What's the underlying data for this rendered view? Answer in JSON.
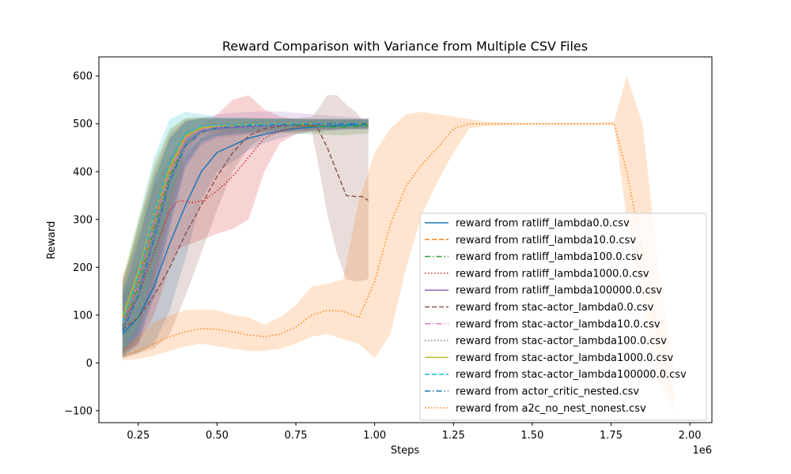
{
  "chart_data": {
    "type": "line",
    "title": "Reward Comparison with Variance from Multiple CSV Files",
    "xlabel": "Steps",
    "ylabel": "Reward",
    "x_offset_label": "1e6",
    "xlim": [
      0.125,
      2.07
    ],
    "ylim": [
      -125,
      640
    ],
    "x_ticks": [
      0.25,
      0.5,
      0.75,
      1.0,
      1.25,
      1.5,
      1.75,
      2.0
    ],
    "x_tick_labels": [
      "0.25",
      "0.50",
      "0.75",
      "1.00",
      "1.25",
      "1.50",
      "1.75",
      "2.00"
    ],
    "y_ticks": [
      -100,
      0,
      100,
      200,
      300,
      400,
      500,
      600
    ],
    "y_tick_labels": [
      "−100",
      "0",
      "100",
      "200",
      "300",
      "400",
      "500",
      "600"
    ],
    "grid": false,
    "legend_position": "lower-right",
    "series": [
      {
        "name": "reward from ratliff_lambda0.0.csv",
        "color": "#1f77b4",
        "dash": "solid",
        "x": [
          0.2,
          0.25,
          0.3,
          0.35,
          0.4,
          0.45,
          0.5,
          0.55,
          0.6,
          0.65,
          0.7,
          0.75,
          0.8,
          0.85,
          0.9,
          0.95,
          0.98
        ],
        "y": [
          60,
          95,
          160,
          250,
          330,
          400,
          440,
          455,
          470,
          478,
          485,
          490,
          493,
          495,
          497,
          498,
          500
        ],
        "lo": [
          10,
          20,
          40,
          110,
          220,
          340,
          400,
          420,
          445,
          460,
          470,
          478,
          482,
          485,
          488,
          490,
          492
        ],
        "hi": [
          130,
          190,
          290,
          380,
          440,
          470,
          480,
          490,
          495,
          498,
          500,
          503,
          505,
          506,
          507,
          508,
          508
        ]
      },
      {
        "name": "reward from ratliff_lambda10.0.csv",
        "color": "#ff7f0e",
        "dash": "dashed",
        "x": [
          0.2,
          0.25,
          0.3,
          0.35,
          0.4,
          0.45,
          0.5,
          0.6,
          0.7,
          0.8,
          0.9,
          0.98
        ],
        "y": [
          80,
          170,
          290,
          400,
          470,
          490,
          495,
          497,
          498,
          499,
          500,
          500
        ],
        "lo": [
          20,
          60,
          180,
          320,
          440,
          475,
          482,
          485,
          487,
          488,
          489,
          490
        ],
        "hi": [
          170,
          290,
          400,
          480,
          510,
          512,
          512,
          512,
          511,
          510,
          510,
          510
        ]
      },
      {
        "name": "reward from ratliff_lambda100.0.csv",
        "color": "#2ca02c",
        "dash": "dashdot",
        "x": [
          0.2,
          0.25,
          0.3,
          0.35,
          0.4,
          0.45,
          0.5,
          0.6,
          0.7,
          0.8,
          0.9,
          0.98
        ],
        "y": [
          75,
          160,
          280,
          390,
          460,
          485,
          490,
          495,
          498,
          495,
          493,
          497
        ],
        "lo": [
          15,
          50,
          160,
          300,
          420,
          465,
          475,
          480,
          482,
          478,
          476,
          480
        ],
        "hi": [
          160,
          280,
          390,
          470,
          505,
          510,
          510,
          510,
          512,
          510,
          508,
          510
        ]
      },
      {
        "name": "reward from ratliff_lambda1000.0.csv",
        "color": "#d62728",
        "dash": "dotted",
        "x": [
          0.2,
          0.25,
          0.3,
          0.35,
          0.38,
          0.42,
          0.46,
          0.5,
          0.55,
          0.6,
          0.65,
          0.7,
          0.75,
          0.8,
          0.85,
          0.9,
          0.95,
          0.98
        ],
        "y": [
          85,
          140,
          230,
          320,
          340,
          335,
          340,
          360,
          390,
          430,
          470,
          485,
          493,
          497,
          499,
          500,
          500,
          500
        ],
        "lo": [
          20,
          40,
          100,
          200,
          240,
          250,
          260,
          270,
          280,
          300,
          400,
          460,
          478,
          485,
          488,
          490,
          490,
          490
        ],
        "hi": [
          180,
          260,
          370,
          430,
          460,
          480,
          500,
          520,
          550,
          560,
          530,
          515,
          510,
          510,
          510,
          510,
          510,
          510
        ]
      },
      {
        "name": "reward from ratliff_lambda100000.0.csv",
        "color": "#9467bd",
        "dash": "solid",
        "x": [
          0.2,
          0.25,
          0.3,
          0.35,
          0.4,
          0.45,
          0.5,
          0.6,
          0.7,
          0.8,
          0.9,
          0.98
        ],
        "y": [
          70,
          140,
          260,
          380,
          460,
          485,
          490,
          494,
          497,
          499,
          500,
          500
        ],
        "lo": [
          15,
          40,
          140,
          290,
          410,
          455,
          470,
          478,
          482,
          485,
          487,
          488
        ],
        "hi": [
          150,
          260,
          380,
          470,
          505,
          512,
          520,
          525,
          526,
          520,
          515,
          512
        ]
      },
      {
        "name": "reward from stac-actor_lambda0.0.csv",
        "color": "#8c564b",
        "dash": "dashed",
        "x": [
          0.2,
          0.25,
          0.3,
          0.35,
          0.4,
          0.45,
          0.5,
          0.55,
          0.6,
          0.65,
          0.7,
          0.75,
          0.8,
          0.82,
          0.85,
          0.88,
          0.91,
          0.94,
          0.96,
          0.98
        ],
        "y": [
          70,
          95,
          140,
          200,
          270,
          330,
          390,
          440,
          475,
          490,
          495,
          498,
          500,
          490,
          450,
          400,
          350,
          348,
          348,
          340
        ],
        "lo": [
          10,
          20,
          30,
          60,
          140,
          230,
          320,
          400,
          450,
          475,
          480,
          484,
          485,
          420,
          310,
          230,
          175,
          170,
          172,
          175
        ],
        "hi": [
          150,
          210,
          280,
          360,
          430,
          470,
          490,
          500,
          505,
          508,
          510,
          512,
          515,
          530,
          560,
          560,
          540,
          525,
          510,
          500
        ]
      },
      {
        "name": "reward from stac-actor_lambda10.0.csv",
        "color": "#e377c2",
        "dash": "dashdot",
        "x": [
          0.2,
          0.25,
          0.3,
          0.35,
          0.4,
          0.45,
          0.5,
          0.6,
          0.7,
          0.8,
          0.9,
          0.98
        ],
        "y": [
          80,
          165,
          290,
          400,
          470,
          490,
          494,
          497,
          499,
          500,
          500,
          500
        ],
        "lo": [
          20,
          60,
          180,
          320,
          440,
          475,
          482,
          486,
          488,
          490,
          490,
          490
        ],
        "hi": [
          160,
          280,
          400,
          480,
          508,
          512,
          512,
          512,
          511,
          510,
          510,
          510
        ]
      },
      {
        "name": "reward from stac-actor_lambda100.0.csv",
        "color": "#7f7f7f",
        "dash": "dotted",
        "x": [
          0.2,
          0.25,
          0.3,
          0.35,
          0.4,
          0.45,
          0.5,
          0.6,
          0.7,
          0.8,
          0.9,
          0.98
        ],
        "y": [
          80,
          170,
          300,
          410,
          478,
          494,
          497,
          498,
          499,
          500,
          500,
          500
        ],
        "lo": [
          20,
          60,
          190,
          330,
          448,
          482,
          486,
          488,
          489,
          490,
          490,
          490
        ],
        "hi": [
          160,
          290,
          410,
          488,
          512,
          514,
          512,
          511,
          510,
          510,
          510,
          510
        ]
      },
      {
        "name": "reward from stac-actor_lambda1000.0.csv",
        "color": "#bcbd22",
        "dash": "solid",
        "x": [
          0.2,
          0.25,
          0.3,
          0.35,
          0.4,
          0.45,
          0.5,
          0.6,
          0.7,
          0.8,
          0.9,
          0.98
        ],
        "y": [
          95,
          190,
          310,
          410,
          475,
          492,
          496,
          498,
          499,
          500,
          500,
          500
        ],
        "lo": [
          30,
          80,
          200,
          330,
          445,
          478,
          485,
          488,
          489,
          490,
          490,
          490
        ],
        "hi": [
          180,
          300,
          420,
          490,
          512,
          514,
          512,
          511,
          510,
          510,
          510,
          510
        ]
      },
      {
        "name": "reward from stac-actor_lambda100000.0.csv",
        "color": "#17becf",
        "dash": "dashed",
        "x": [
          0.2,
          0.25,
          0.3,
          0.35,
          0.4,
          0.45,
          0.5,
          0.6,
          0.7,
          0.8,
          0.9,
          0.98
        ],
        "y": [
          85,
          180,
          310,
          420,
          480,
          495,
          497,
          498,
          499,
          500,
          500,
          500
        ],
        "lo": [
          20,
          70,
          200,
          340,
          450,
          482,
          486,
          488,
          489,
          490,
          490,
          490
        ],
        "hi": [
          170,
          300,
          430,
          510,
          525,
          520,
          514,
          512,
          511,
          510,
          510,
          510
        ]
      },
      {
        "name": "reward from actor_critic_nested.csv",
        "color": "#1f77b4",
        "dash": "dashdot",
        "x": [
          0.2,
          0.25,
          0.3,
          0.35,
          0.4,
          0.45,
          0.5,
          0.6,
          0.7,
          0.8,
          0.9,
          0.98
        ],
        "y": [
          65,
          140,
          260,
          380,
          455,
          482,
          492,
          496,
          498,
          499,
          500,
          500
        ],
        "lo": [
          10,
          40,
          140,
          280,
          410,
          460,
          474,
          482,
          486,
          488,
          490,
          490
        ],
        "hi": [
          140,
          250,
          380,
          470,
          505,
          512,
          512,
          512,
          511,
          510,
          510,
          510
        ]
      },
      {
        "name": "reward from a2c_no_nest_nonest.csv",
        "color": "#ff7f0e",
        "dash": "dotted",
        "alpha": 0.2,
        "x": [
          0.2,
          0.25,
          0.3,
          0.35,
          0.4,
          0.45,
          0.5,
          0.55,
          0.6,
          0.65,
          0.7,
          0.75,
          0.8,
          0.85,
          0.9,
          0.95,
          1.0,
          1.05,
          1.1,
          1.15,
          1.2,
          1.25,
          1.3,
          1.35,
          1.4,
          1.5,
          1.6,
          1.7,
          1.76,
          1.8,
          1.85,
          1.9,
          1.95
        ],
        "y": [
          15,
          25,
          40,
          55,
          65,
          72,
          70,
          65,
          58,
          55,
          60,
          75,
          100,
          110,
          108,
          95,
          170,
          290,
          370,
          415,
          450,
          490,
          500,
          500,
          500,
          500,
          500,
          500,
          500,
          400,
          230,
          60,
          -80
        ],
        "lo": [
          5,
          8,
          15,
          25,
          35,
          40,
          35,
          30,
          25,
          25,
          30,
          40,
          55,
          60,
          50,
          40,
          10,
          60,
          200,
          310,
          380,
          440,
          490,
          495,
          497,
          498,
          498,
          498,
          498,
          300,
          120,
          -40,
          -100
        ],
        "hi": [
          30,
          55,
          85,
          100,
          110,
          112,
          110,
          100,
          95,
          80,
          95,
          120,
          160,
          165,
          175,
          340,
          440,
          490,
          520,
          525,
          520,
          515,
          510,
          505,
          503,
          502,
          502,
          502,
          505,
          600,
          500,
          200,
          -10
        ]
      }
    ]
  }
}
